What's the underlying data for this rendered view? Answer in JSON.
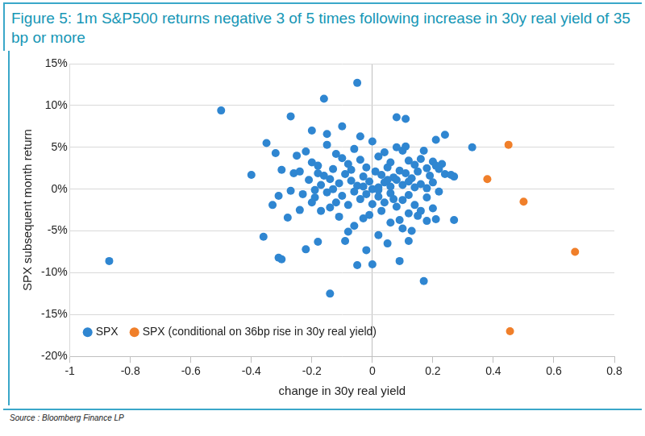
{
  "chart_data": {
    "type": "scatter",
    "title": "Figure 5: 1m S&P500 returns negative 3 of 5 times following increase in 30y real yield of 35 bp or more",
    "source": "Source : Bloomberg Finance LP",
    "x_label": "change in 30y real yield",
    "y_label": "SPX subsequent month return",
    "xlim": [
      -1,
      0.8
    ],
    "xticks": [
      -1,
      -0.8,
      -0.6,
      -0.4,
      -0.2,
      0,
      0.2,
      0.4,
      0.6,
      0.8
    ],
    "ylim": [
      -20,
      15
    ],
    "yticks": [
      {
        "value": -20,
        "label": "-20%"
      },
      {
        "value": -15,
        "label": "-15%"
      },
      {
        "value": -10,
        "label": "-10%"
      },
      {
        "value": -5,
        "label": "-5%"
      },
      {
        "value": 0,
        "label": "0%"
      },
      {
        "value": 5,
        "label": "5%"
      },
      {
        "value": 10,
        "label": "10%"
      },
      {
        "value": 15,
        "label": "15%"
      }
    ],
    "grid": true,
    "legend": "bottom-left",
    "series": [
      {
        "name": "SPX",
        "color": "#2f86d1",
        "marker": "circle",
        "x": [
          -0.87,
          -0.5,
          -0.4,
          -0.36,
          -0.35,
          -0.32,
          -0.31,
          -0.3,
          -0.31,
          -0.28,
          -0.27,
          -0.25,
          -0.24,
          -0.22,
          -0.2,
          -0.19,
          -0.18,
          -0.16,
          -0.14,
          -0.05,
          -0.05,
          0.0,
          0.09,
          0.17,
          0.33,
          0.27,
          0.27,
          0.24,
          0.21,
          0.08,
          0.11,
          -0.1,
          -0.15,
          0.12,
          0.05,
          -0.22,
          -0.2,
          -0.18,
          -0.15,
          -0.12,
          -0.1,
          -0.08,
          -0.06,
          -0.04,
          -0.02,
          0.0,
          0.02,
          0.04,
          0.06,
          0.08,
          0.1,
          0.12,
          0.14,
          0.16,
          0.18,
          0.2,
          0.22,
          0.24,
          -0.26,
          -0.3,
          -0.24,
          -0.16,
          -0.13,
          -0.09,
          -0.03,
          0.01,
          0.03,
          0.05,
          0.07,
          0.09,
          0.11,
          0.13,
          0.15,
          0.19,
          0.21,
          0.23,
          0.26,
          -0.21,
          -0.17,
          -0.14,
          -0.11,
          -0.07,
          -0.05,
          -0.01,
          0.02,
          0.04,
          0.06,
          0.08,
          0.1,
          0.12,
          0.14,
          0.16,
          0.18,
          0.2,
          0.22,
          -0.27,
          -0.23,
          -0.19,
          -0.15,
          -0.12,
          -0.1,
          -0.08,
          -0.06,
          -0.04,
          -0.02,
          0.0,
          0.02,
          0.04,
          0.06,
          0.08,
          0.1,
          0.12,
          0.14,
          0.16,
          0.18,
          0.2,
          0.21,
          0.18,
          0.15,
          0.12,
          0.09,
          0.06,
          0.03,
          -0.01,
          -0.03,
          -0.06,
          -0.08,
          -0.11,
          -0.14,
          -0.17,
          -0.2,
          -0.33,
          0.13,
          -0.09,
          0.02,
          -0.02,
          0.1,
          -0.13,
          -0.18,
          0.0,
          0.02,
          -0.03,
          0.07,
          0.05,
          -0.07,
          0.17,
          0.11,
          -0.04
        ],
        "values": [
          -8.6,
          9.4,
          1.7,
          -5.7,
          5.5,
          4.3,
          -8.2,
          -8.4,
          -0.8,
          -3.4,
          8.7,
          4.0,
          -2.5,
          -7.2,
          7.0,
          -0.1,
          -6.3,
          10.8,
          -12.5,
          12.7,
          -9.1,
          -9.0,
          -8.6,
          -11.0,
          5.0,
          -3.7,
          1.5,
          6.5,
          5.9,
          8.6,
          8.4,
          7.5,
          6.6,
          -6.2,
          -6.5,
          4.5,
          3.2,
          2.8,
          5.3,
          4.2,
          3.7,
          3.0,
          4.8,
          3.5,
          2.6,
          5.7,
          3.9,
          4.4,
          3.2,
          5.0,
          4.6,
          3.4,
          2.9,
          3.6,
          2.5,
          3.3,
          2.4,
          1.8,
          1.9,
          2.3,
          2.1,
          1.6,
          2.4,
          1.8,
          1.5,
          2.1,
          1.7,
          2.6,
          1.4,
          2.2,
          1.9,
          1.3,
          2.1,
          1.6,
          2.8,
          3.0,
          1.7,
          1.1,
          0.5,
          1.2,
          0.7,
          1.0,
          0.4,
          0.9,
          0.2,
          0.8,
          0.3,
          1.1,
          0.5,
          0.9,
          0.2,
          0.6,
          0.1,
          0.8,
          -0.3,
          -0.2,
          -0.6,
          -1.0,
          -0.4,
          -1.6,
          -0.8,
          -1.9,
          -0.3,
          -1.2,
          -0.6,
          -1.8,
          -0.9,
          -1.6,
          -0.5,
          -2.1,
          -1.3,
          -0.7,
          -1.9,
          -2.6,
          -1.0,
          -2.3,
          -3.6,
          -3.8,
          -3.2,
          -2.9,
          -3.7,
          -4.0,
          -2.6,
          -3.1,
          -3.5,
          -4.4,
          -5.1,
          -3.3,
          -2.2,
          -2.6,
          -1.6,
          -1.9,
          -5.0,
          -6.2,
          -5.5,
          -7.3,
          -4.7,
          0.0,
          1.9,
          0.0,
          -0.1,
          0.3,
          -1.2,
          1.1,
          2.3,
          4.6,
          5.1,
          6.3
        ]
      },
      {
        "name": "SPX (conditional on 36bp rise in 30y real yield)",
        "color": "#f07f2a",
        "marker": "circle",
        "x": [
          0.45,
          0.38,
          0.5,
          0.67,
          0.455
        ],
        "values": [
          5.3,
          1.2,
          -1.5,
          -7.5,
          -17.0
        ]
      }
    ]
  }
}
